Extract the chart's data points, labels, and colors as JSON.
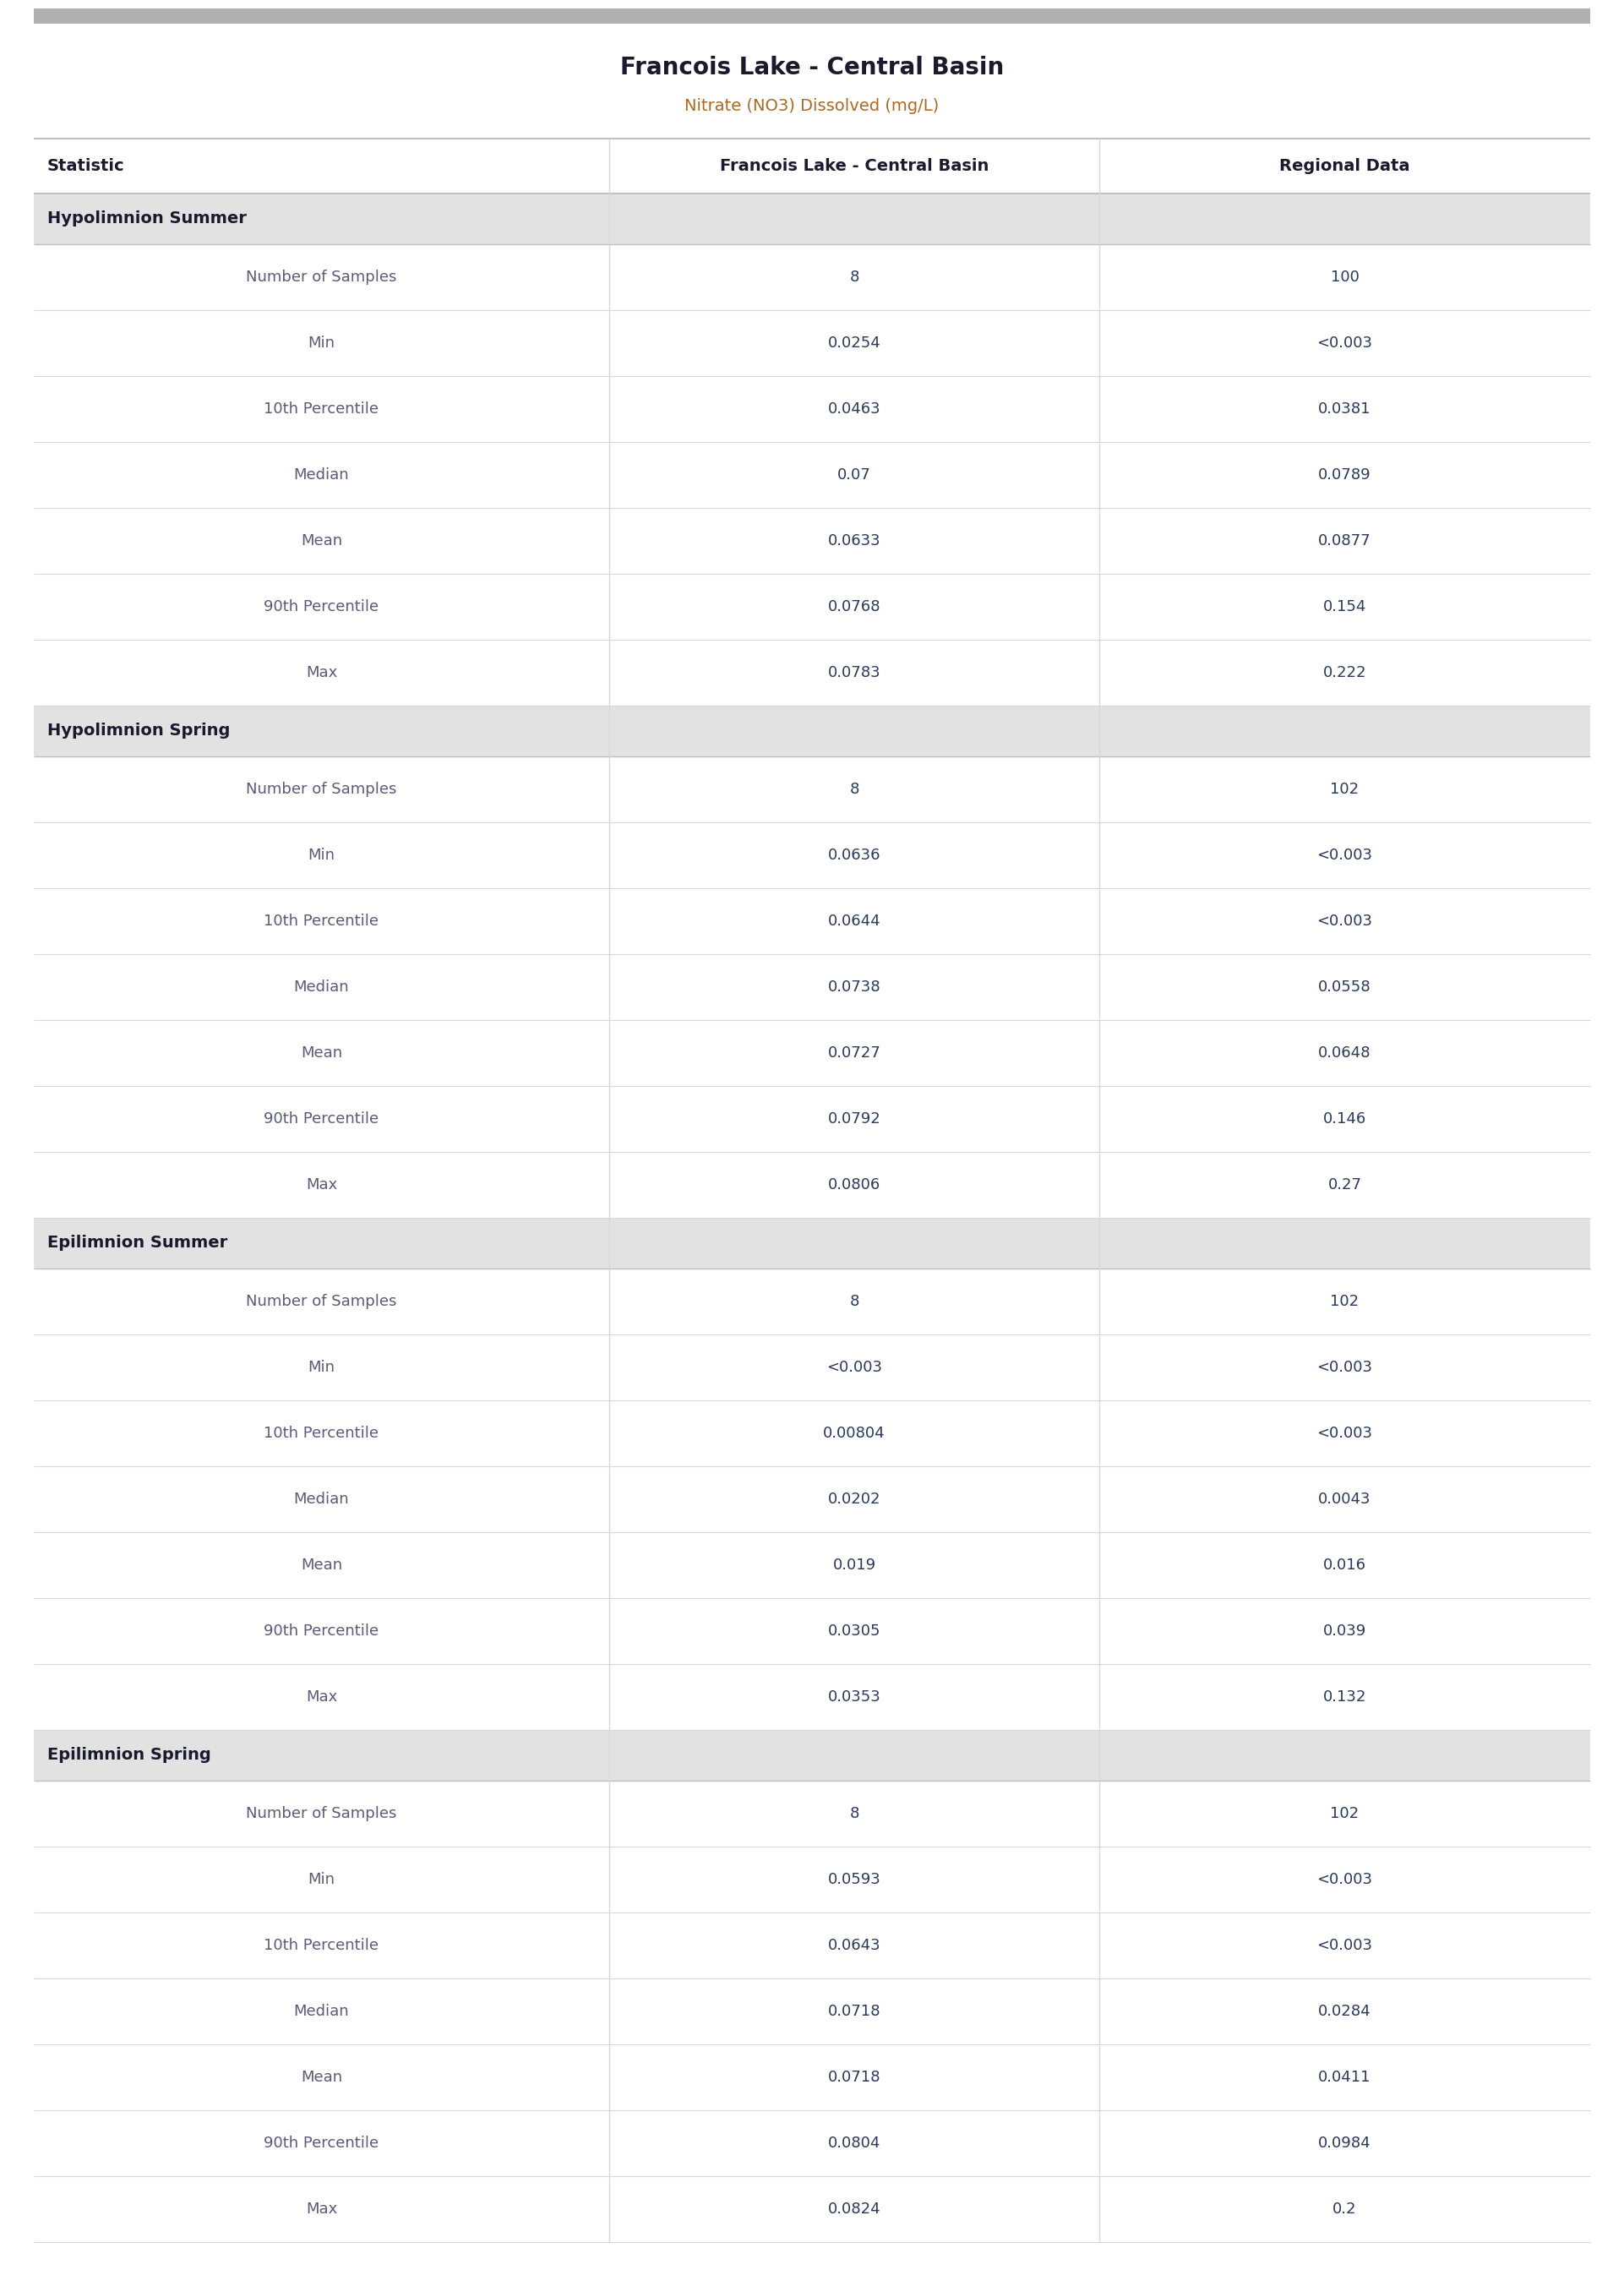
{
  "title": "Francois Lake - Central Basin",
  "subtitle": "Nitrate (NO3) Dissolved (mg/L)",
  "col_headers": [
    "Statistic",
    "Francois Lake - Central Basin",
    "Regional Data"
  ],
  "sections": [
    {
      "name": "Hypolimnion Summer",
      "rows": [
        [
          "Number of Samples",
          "8",
          "100"
        ],
        [
          "Min",
          "0.0254",
          "<0.003"
        ],
        [
          "10th Percentile",
          "0.0463",
          "0.0381"
        ],
        [
          "Median",
          "0.07",
          "0.0789"
        ],
        [
          "Mean",
          "0.0633",
          "0.0877"
        ],
        [
          "90th Percentile",
          "0.0768",
          "0.154"
        ],
        [
          "Max",
          "0.0783",
          "0.222"
        ]
      ]
    },
    {
      "name": "Hypolimnion Spring",
      "rows": [
        [
          "Number of Samples",
          "8",
          "102"
        ],
        [
          "Min",
          "0.0636",
          "<0.003"
        ],
        [
          "10th Percentile",
          "0.0644",
          "<0.003"
        ],
        [
          "Median",
          "0.0738",
          "0.0558"
        ],
        [
          "Mean",
          "0.0727",
          "0.0648"
        ],
        [
          "90th Percentile",
          "0.0792",
          "0.146"
        ],
        [
          "Max",
          "0.0806",
          "0.27"
        ]
      ]
    },
    {
      "name": "Epilimnion Summer",
      "rows": [
        [
          "Number of Samples",
          "8",
          "102"
        ],
        [
          "Min",
          "<0.003",
          "<0.003"
        ],
        [
          "10th Percentile",
          "0.00804",
          "<0.003"
        ],
        [
          "Median",
          "0.0202",
          "0.0043"
        ],
        [
          "Mean",
          "0.019",
          "0.016"
        ],
        [
          "90th Percentile",
          "0.0305",
          "0.039"
        ],
        [
          "Max",
          "0.0353",
          "0.132"
        ]
      ]
    },
    {
      "name": "Epilimnion Spring",
      "rows": [
        [
          "Number of Samples",
          "8",
          "102"
        ],
        [
          "Min",
          "0.0593",
          "<0.003"
        ],
        [
          "10th Percentile",
          "0.0643",
          "<0.003"
        ],
        [
          "Median",
          "0.0718",
          "0.0284"
        ],
        [
          "Mean",
          "0.0718",
          "0.0411"
        ],
        [
          "90th Percentile",
          "0.0804",
          "0.0984"
        ],
        [
          "Max",
          "0.0824",
          "0.2"
        ]
      ]
    }
  ],
  "colors": {
    "top_bar": "#b0b0b0",
    "section_header_bg": "#e2e2e2",
    "section_header_text": "#1a1a2e",
    "col_header_text": "#1a1a2e",
    "row_text_stat": "#5a5a7a",
    "row_text_val": "#2a3a5a",
    "row_divider": "#d8d8d8",
    "section_divider": "#c0c0c0",
    "title_text": "#1a1a2e",
    "subtitle_text": "#b06820",
    "background": "#ffffff",
    "col_header_divider": "#c0c0c0"
  },
  "title_fontsize": 20,
  "subtitle_fontsize": 14,
  "col_header_fontsize": 14,
  "section_header_fontsize": 14,
  "data_fontsize": 13,
  "col_split1": 0.37,
  "col_split2": 0.685
}
